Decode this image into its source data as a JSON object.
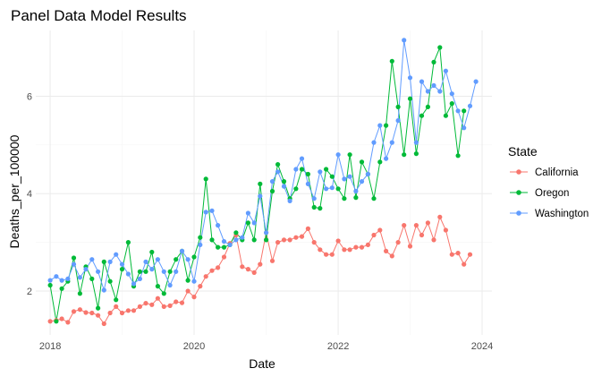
{
  "chart_data": {
    "type": "line",
    "title": "Panel Data Model Results",
    "xlabel": "Date",
    "ylabel": "Deaths_per_100000",
    "xlim": [
      "2017-10-20",
      "2024-02-20"
    ],
    "ylim": [
      1.1,
      7.35
    ],
    "x_ticks": [
      "2018-01-01",
      "2020-01-01",
      "2022-01-01",
      "2024-01-01"
    ],
    "x_tick_labels": [
      "2018",
      "2020",
      "2022",
      "2024"
    ],
    "y_ticks": [
      2,
      4,
      6
    ],
    "y_tick_labels": [
      "2",
      "4",
      "6"
    ],
    "grid": true,
    "legend": {
      "title": "State",
      "position": "right"
    },
    "x": [
      "2018-01",
      "2018-02",
      "2018-03",
      "2018-04",
      "2018-05",
      "2018-06",
      "2018-07",
      "2018-08",
      "2018-09",
      "2018-10",
      "2018-11",
      "2018-12",
      "2019-01",
      "2019-02",
      "2019-03",
      "2019-04",
      "2019-05",
      "2019-06",
      "2019-07",
      "2019-08",
      "2019-09",
      "2019-10",
      "2019-11",
      "2019-12",
      "2020-01",
      "2020-02",
      "2020-03",
      "2020-04",
      "2020-05",
      "2020-06",
      "2020-07",
      "2020-08",
      "2020-09",
      "2020-10",
      "2020-11",
      "2020-12",
      "2021-01",
      "2021-02",
      "2021-03",
      "2021-04",
      "2021-05",
      "2021-06",
      "2021-07",
      "2021-08",
      "2021-09",
      "2021-10",
      "2021-11",
      "2021-12",
      "2022-01",
      "2022-02",
      "2022-03",
      "2022-04",
      "2022-05",
      "2022-06",
      "2022-07",
      "2022-08",
      "2022-09",
      "2022-10",
      "2022-11",
      "2022-12",
      "2023-01",
      "2023-02",
      "2023-03",
      "2023-04",
      "2023-05",
      "2023-06",
      "2023-07",
      "2023-08",
      "2023-09",
      "2023-10",
      "2023-11",
      "2023-12"
    ],
    "series": [
      {
        "name": "California",
        "color": "#F8766D",
        "values": [
          1.38,
          1.4,
          1.43,
          1.36,
          1.58,
          1.62,
          1.56,
          1.55,
          1.5,
          1.33,
          1.55,
          1.68,
          1.55,
          1.6,
          1.6,
          1.68,
          1.75,
          1.72,
          1.85,
          1.68,
          1.7,
          1.78,
          1.76,
          2.0,
          1.88,
          2.1,
          2.3,
          2.42,
          2.48,
          2.7,
          2.98,
          3.15,
          2.5,
          2.45,
          2.38,
          2.55,
          3.2,
          2.62,
          3.0,
          3.05,
          3.05,
          3.1,
          3.12,
          3.28,
          3.0,
          2.85,
          2.75,
          2.75,
          3.03,
          2.85,
          2.85,
          2.9,
          2.9,
          2.95,
          3.15,
          3.25,
          2.82,
          2.72,
          3.0,
          3.35,
          2.92,
          3.35,
          3.15,
          3.4,
          3.05,
          3.52,
          3.25,
          2.75,
          2.78,
          2.55,
          2.75,
          null
        ]
      },
      {
        "name": "Oregon",
        "color": "#00BA38",
        "values": [
          2.12,
          1.38,
          2.05,
          2.2,
          2.68,
          1.95,
          2.5,
          2.25,
          1.65,
          2.6,
          2.2,
          1.82,
          2.45,
          3.0,
          2.1,
          2.4,
          2.4,
          2.8,
          2.1,
          1.95,
          2.4,
          2.65,
          2.82,
          2.22,
          2.7,
          3.1,
          4.3,
          3.05,
          2.9,
          2.9,
          2.95,
          3.2,
          3.05,
          3.4,
          3.05,
          4.2,
          3.05,
          4.05,
          4.6,
          4.25,
          3.9,
          4.1,
          4.5,
          4.4,
          3.72,
          3.7,
          4.5,
          4.35,
          4.1,
          3.9,
          4.8,
          3.92,
          4.65,
          4.4,
          3.9,
          4.65,
          5.4,
          6.72,
          5.78,
          4.8,
          5.95,
          4.82,
          5.6,
          5.78,
          6.7,
          7.0,
          5.6,
          5.85,
          4.78,
          5.7,
          null,
          null
        ]
      },
      {
        "name": "Washington",
        "color": "#619CFF",
        "values": [
          2.22,
          2.3,
          2.22,
          2.25,
          2.55,
          2.28,
          2.45,
          2.65,
          2.4,
          2.02,
          2.6,
          2.75,
          2.55,
          2.35,
          2.15,
          2.25,
          2.6,
          2.45,
          2.65,
          2.4,
          2.12,
          2.4,
          2.82,
          2.65,
          2.2,
          2.95,
          3.62,
          3.65,
          3.35,
          3.02,
          2.95,
          3.05,
          3.1,
          3.6,
          3.4,
          3.95,
          3.2,
          4.25,
          4.45,
          4.15,
          3.85,
          4.5,
          4.72,
          4.2,
          3.9,
          4.45,
          4.1,
          4.12,
          4.8,
          4.3,
          4.35,
          4.05,
          4.25,
          4.4,
          5.05,
          5.4,
          4.72,
          5.05,
          5.5,
          7.15,
          6.38,
          5.05,
          6.3,
          6.1,
          6.22,
          6.1,
          6.52,
          6.05,
          5.7,
          5.35,
          5.8,
          6.3
        ]
      }
    ]
  }
}
